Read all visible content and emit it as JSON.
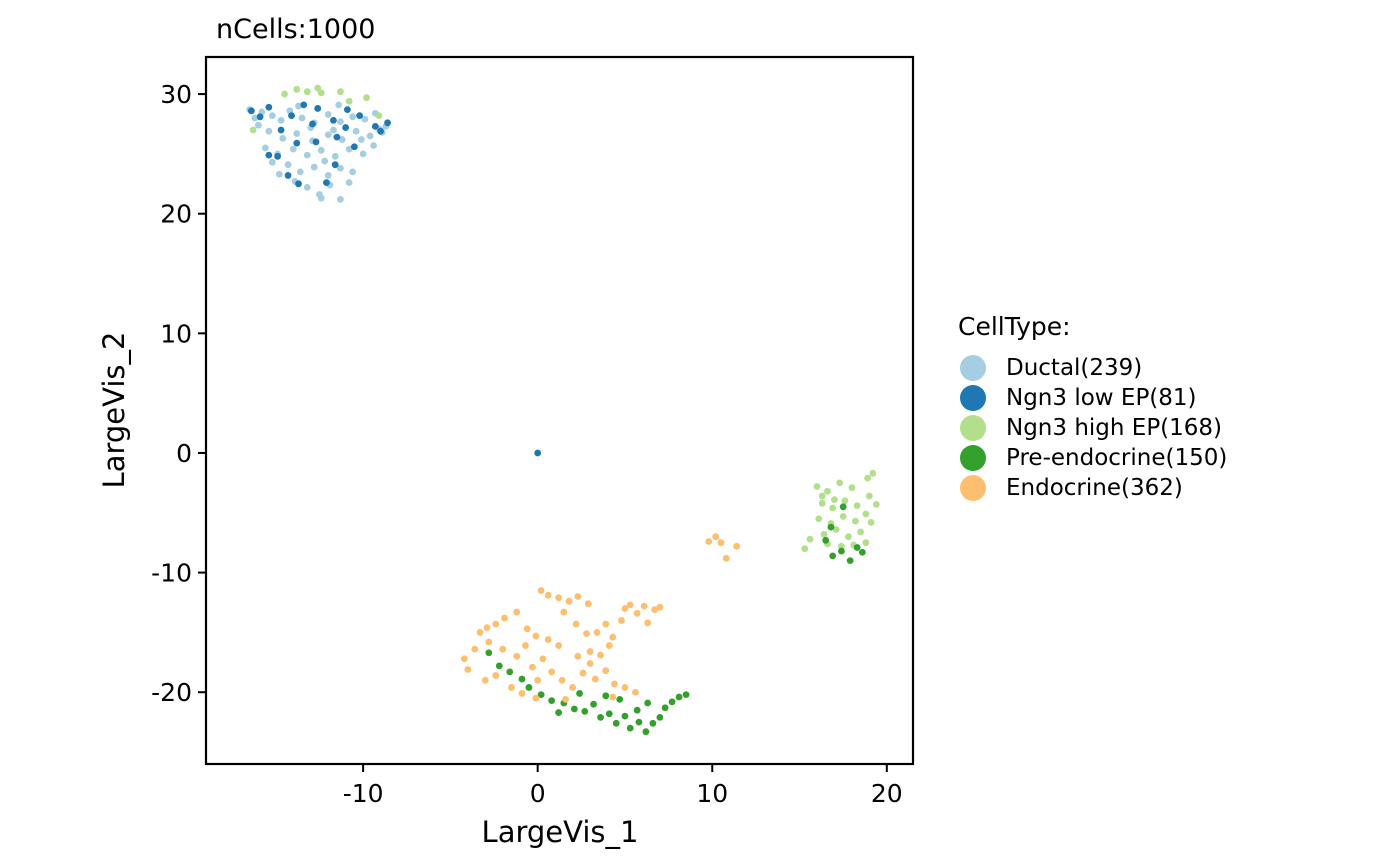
{
  "chart_data": {
    "type": "scatter",
    "title": "nCells:1000",
    "xlabel": "LargeVis_1",
    "ylabel": "LargeVis_2",
    "xlim": [
      -19,
      21.5
    ],
    "ylim": [
      -26,
      33.1
    ],
    "xticks": [
      -10,
      0,
      10,
      20
    ],
    "yticks": [
      -20,
      -10,
      0,
      10,
      20,
      30
    ],
    "xtick_labels": [
      "-10",
      "0",
      "10",
      "20"
    ],
    "ytick_labels": [
      "-20",
      "-10",
      "0",
      "10",
      "20",
      "30"
    ],
    "grid": false,
    "legend": {
      "title": "CellType:",
      "placement": "right"
    },
    "series": [
      {
        "name": "Ductal(239)",
        "color": "#A6CEE3",
        "points": [
          [
            -16.5,
            28.7
          ],
          [
            -15.8,
            28.5
          ],
          [
            -15.2,
            28.2
          ],
          [
            -14.7,
            27.8
          ],
          [
            -14.2,
            28.6
          ],
          [
            -13.5,
            28.0
          ],
          [
            -12.8,
            27.6
          ],
          [
            -12.0,
            28.3
          ],
          [
            -11.3,
            27.7
          ],
          [
            -10.6,
            28.1
          ],
          [
            -9.9,
            27.9
          ],
          [
            -9.3,
            28.4
          ],
          [
            -8.7,
            27.3
          ],
          [
            -8.9,
            26.8
          ],
          [
            -9.6,
            26.5
          ],
          [
            -10.4,
            26.9
          ],
          [
            -11.2,
            26.2
          ],
          [
            -12.0,
            26.6
          ],
          [
            -12.9,
            26.1
          ],
          [
            -13.8,
            26.7
          ],
          [
            -14.6,
            26.3
          ],
          [
            -15.4,
            26.9
          ],
          [
            -16.0,
            27.4
          ],
          [
            -15.6,
            25.5
          ],
          [
            -14.9,
            25.0
          ],
          [
            -14.0,
            25.4
          ],
          [
            -13.2,
            24.9
          ],
          [
            -12.4,
            25.3
          ],
          [
            -11.6,
            24.8
          ],
          [
            -10.8,
            25.4
          ],
          [
            -10.0,
            25.0
          ],
          [
            -9.4,
            25.7
          ],
          [
            -14.3,
            24.1
          ],
          [
            -13.6,
            23.5
          ],
          [
            -12.8,
            23.9
          ],
          [
            -12.0,
            23.2
          ],
          [
            -11.3,
            23.8
          ],
          [
            -10.6,
            23.5
          ],
          [
            -13.9,
            22.7
          ],
          [
            -13.2,
            22.2
          ],
          [
            -12.5,
            21.6
          ],
          [
            -11.9,
            22.4
          ],
          [
            -12.4,
            21.3
          ],
          [
            -11.3,
            21.2
          ],
          [
            -10.8,
            22.6
          ],
          [
            -14.8,
            23.3
          ],
          [
            -13.0,
            27.2
          ],
          [
            -11.7,
            27.0
          ],
          [
            -10.1,
            26.2
          ],
          [
            -15.2,
            24.3
          ],
          [
            -12.2,
            24.4
          ],
          [
            -9.1,
            27.1
          ],
          [
            -16.2,
            28.0
          ],
          [
            -13.7,
            29.0
          ],
          [
            -11.4,
            29.1
          ]
        ]
      },
      {
        "name": "Ngn3 low EP(81)",
        "color": "#1F78B4",
        "points": [
          [
            -16.4,
            28.6
          ],
          [
            -15.4,
            28.9
          ],
          [
            -14.7,
            27.0
          ],
          [
            -14.1,
            28.2
          ],
          [
            -13.4,
            29.1
          ],
          [
            -12.6,
            28.8
          ],
          [
            -11.7,
            27.8
          ],
          [
            -10.9,
            28.7
          ],
          [
            -10.2,
            28.2
          ],
          [
            -9.3,
            27.3
          ],
          [
            -8.6,
            27.6
          ],
          [
            -9.0,
            26.9
          ],
          [
            -11.5,
            26.4
          ],
          [
            -12.7,
            26.0
          ],
          [
            -13.8,
            25.9
          ],
          [
            -14.9,
            24.8
          ],
          [
            -15.4,
            24.9
          ],
          [
            -14.3,
            23.2
          ],
          [
            -13.7,
            22.5
          ],
          [
            -12.1,
            22.6
          ],
          [
            -11.6,
            24.1
          ],
          [
            -10.5,
            25.6
          ],
          [
            -12.9,
            27.5
          ],
          [
            -11.0,
            27.2
          ],
          [
            -15.9,
            28.1
          ],
          [
            0,
            0
          ]
        ]
      },
      {
        "name": "Ngn3 high EP(168)",
        "color": "#B2DF8A",
        "points": [
          [
            -14.5,
            30.0
          ],
          [
            -13.8,
            30.4
          ],
          [
            -13.2,
            30.2
          ],
          [
            -12.6,
            30.5
          ],
          [
            -12.4,
            30.1
          ],
          [
            -11.3,
            30.2
          ],
          [
            -10.8,
            29.4
          ],
          [
            -9.8,
            29.7
          ],
          [
            -9.1,
            28.2
          ],
          [
            -16.3,
            27.0
          ],
          [
            16.0,
            -2.8
          ],
          [
            16.6,
            -3.2
          ],
          [
            17.3,
            -2.5
          ],
          [
            18.0,
            -2.9
          ],
          [
            18.9,
            -2.1
          ],
          [
            19.2,
            -1.7
          ],
          [
            16.3,
            -4.2
          ],
          [
            16.9,
            -4.6
          ],
          [
            17.6,
            -4.0
          ],
          [
            18.3,
            -4.4
          ],
          [
            19.0,
            -3.6
          ],
          [
            19.4,
            -4.3
          ],
          [
            16.1,
            -5.5
          ],
          [
            16.8,
            -5.9
          ],
          [
            17.5,
            -5.3
          ],
          [
            18.2,
            -5.7
          ],
          [
            18.8,
            -5.1
          ],
          [
            16.4,
            -6.8
          ],
          [
            17.1,
            -6.4
          ],
          [
            17.8,
            -7.0
          ],
          [
            18.5,
            -6.6
          ],
          [
            19.1,
            -5.8
          ],
          [
            15.6,
            -7.2
          ],
          [
            15.3,
            -8.0
          ],
          [
            16.6,
            -7.6
          ],
          [
            17.4,
            -7.8
          ],
          [
            18.1,
            -7.7
          ],
          [
            18.8,
            -7.5
          ],
          [
            16.3,
            -3.6
          ],
          [
            17.0,
            -3.9
          ]
        ]
      },
      {
        "name": "Pre-endocrine(150)",
        "color": "#33A02C",
        "points": [
          [
            16.5,
            -7.3
          ],
          [
            16.9,
            -8.6
          ],
          [
            17.4,
            -8.2
          ],
          [
            17.9,
            -9.0
          ],
          [
            18.3,
            -7.9
          ],
          [
            18.6,
            -8.3
          ],
          [
            17.5,
            -4.5
          ],
          [
            16.8,
            -6.2
          ],
          [
            -2.8,
            -16.7
          ],
          [
            -2.2,
            -17.8
          ],
          [
            -1.6,
            -18.3
          ],
          [
            -0.9,
            -18.9
          ],
          [
            -0.5,
            -19.6
          ],
          [
            0.2,
            -20.2
          ],
          [
            0.8,
            -20.7
          ],
          [
            1.5,
            -20.9
          ],
          [
            2.1,
            -21.4
          ],
          [
            2.7,
            -21.6
          ],
          [
            3.2,
            -21.0
          ],
          [
            3.6,
            -22.1
          ],
          [
            4.1,
            -21.8
          ],
          [
            4.5,
            -22.6
          ],
          [
            5.0,
            -22.0
          ],
          [
            5.3,
            -23.0
          ],
          [
            5.8,
            -22.5
          ],
          [
            6.2,
            -23.3
          ],
          [
            6.6,
            -22.6
          ],
          [
            7.0,
            -22.1
          ],
          [
            7.3,
            -21.3
          ],
          [
            7.7,
            -20.8
          ],
          [
            8.1,
            -20.4
          ],
          [
            8.5,
            -20.2
          ],
          [
            6.3,
            -20.9
          ],
          [
            5.7,
            -21.5
          ],
          [
            4.7,
            -20.6
          ],
          [
            3.9,
            -20.3
          ],
          [
            2.4,
            -20.1
          ],
          [
            1.2,
            -21.7
          ]
        ]
      },
      {
        "name": "Endocrine(362)",
        "color": "#FDBF6F",
        "points": [
          [
            9.8,
            -7.4
          ],
          [
            10.2,
            -7.0
          ],
          [
            10.5,
            -7.5
          ],
          [
            10.8,
            -8.8
          ],
          [
            11.4,
            -7.8
          ],
          [
            -4.2,
            -17.2
          ],
          [
            -4.0,
            -18.1
          ],
          [
            -3.6,
            -16.4
          ],
          [
            -3.3,
            -15.0
          ],
          [
            -2.9,
            -14.6
          ],
          [
            -2.4,
            -14.3
          ],
          [
            -1.9,
            -13.8
          ],
          [
            -1.2,
            -13.3
          ],
          [
            -0.6,
            -14.7
          ],
          [
            -0.1,
            -15.3
          ],
          [
            0.2,
            -11.5
          ],
          [
            0.6,
            -11.9
          ],
          [
            1.2,
            -12.1
          ],
          [
            1.8,
            -12.4
          ],
          [
            2.3,
            -12.0
          ],
          [
            2.9,
            -12.6
          ],
          [
            1.5,
            -13.3
          ],
          [
            2.2,
            -14.3
          ],
          [
            2.8,
            -15.1
          ],
          [
            3.4,
            -15.0
          ],
          [
            3.9,
            -14.3
          ],
          [
            4.3,
            -15.4
          ],
          [
            4.8,
            -14.0
          ],
          [
            5.0,
            -13.0
          ],
          [
            5.3,
            -12.7
          ],
          [
            5.7,
            -13.4
          ],
          [
            6.1,
            -12.8
          ],
          [
            6.3,
            -14.2
          ],
          [
            6.7,
            -13.1
          ],
          [
            7.0,
            -12.9
          ],
          [
            4.1,
            -16.1
          ],
          [
            3.6,
            -16.9
          ],
          [
            3.0,
            -17.6
          ],
          [
            2.6,
            -18.4
          ],
          [
            3.3,
            -18.9
          ],
          [
            3.9,
            -18.2
          ],
          [
            4.4,
            -19.3
          ],
          [
            5.0,
            -19.6
          ],
          [
            5.6,
            -20.0
          ],
          [
            4.3,
            -20.4
          ],
          [
            2.0,
            -19.6
          ],
          [
            1.4,
            -19.0
          ],
          [
            0.8,
            -18.3
          ],
          [
            0.3,
            -17.2
          ],
          [
            -0.3,
            -17.9
          ],
          [
            -1.2,
            -17.0
          ],
          [
            -2.0,
            -16.4
          ],
          [
            -2.8,
            -15.8
          ],
          [
            -1.5,
            -19.6
          ],
          [
            -0.9,
            -20.1
          ],
          [
            0.0,
            -19.0
          ],
          [
            1.2,
            -16.1
          ],
          [
            0.6,
            -15.6
          ],
          [
            -0.7,
            -16.1
          ],
          [
            -2.4,
            -18.6
          ],
          [
            -3.0,
            -19.0
          ],
          [
            -0.1,
            -20.5
          ],
          [
            1.6,
            -20.6
          ],
          [
            2.3,
            -17.0
          ],
          [
            3.0,
            -16.6
          ]
        ]
      }
    ]
  }
}
